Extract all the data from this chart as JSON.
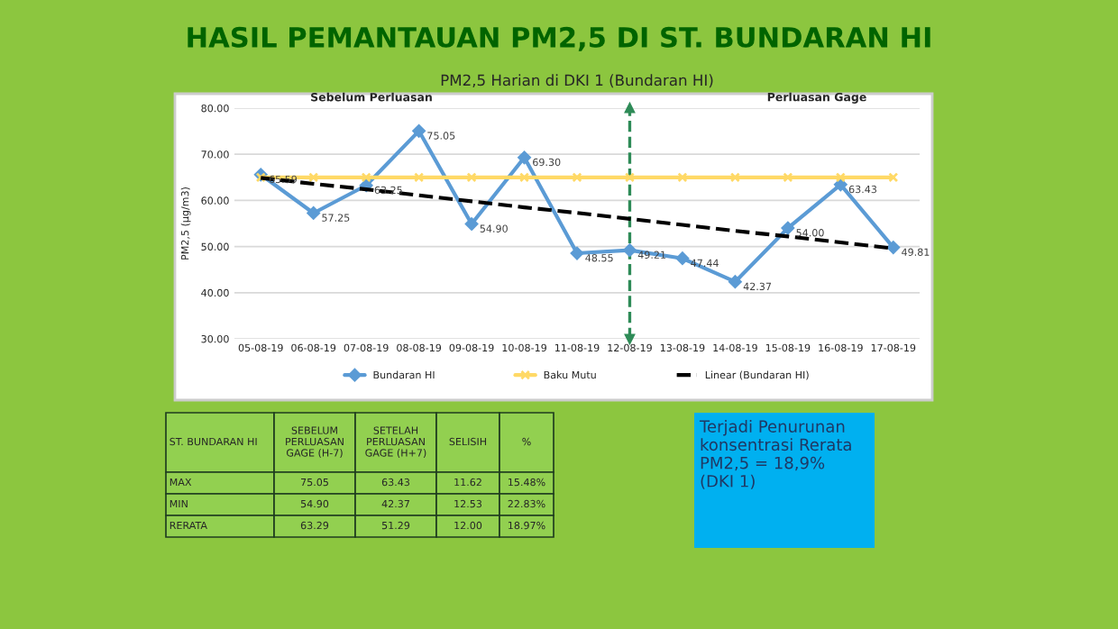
{
  "chart_data": [
    {
      "type": "line",
      "title": "HASIL PEMANTAUAN PM2,5 DI ST. BUNDARAN HI",
      "subtitle": "PM2,5 Harian di DKI 1 (Bundaran HI)",
      "ylabel": "PM2,5 (µg/m3)",
      "categories": [
        "05-08-19",
        "06-08-19",
        "07-08-19",
        "08-08-19",
        "09-08-19",
        "10-08-19",
        "11-08-19",
        "12-08-19",
        "13-08-19",
        "14-08-19",
        "15-08-19",
        "16-08-19",
        "17-08-19"
      ],
      "series": [
        {
          "name": "Bundaran HI",
          "color": "#5b9bd5",
          "marker": "diamond",
          "values": [
            65.59,
            57.25,
            63.25,
            75.05,
            54.9,
            69.3,
            48.55,
            49.21,
            47.44,
            42.37,
            54.0,
            63.43,
            49.81
          ],
          "value_labels": [
            "65.59",
            "57.25",
            "63.25",
            "75.05",
            "54.90",
            "69.30",
            "48.55",
            "49.21",
            "47.44",
            "42.37",
            "54.00",
            "63.43",
            "49.81"
          ]
        },
        {
          "name": "Baku Mutu",
          "color": "#ffd966",
          "marker": "cross",
          "values": [
            65,
            65,
            65,
            65,
            65,
            65,
            65,
            65,
            65,
            65,
            65,
            65,
            65
          ]
        },
        {
          "name": "Linear (Bundaran HI)",
          "color": "#000000",
          "marker": "none",
          "line_style": "dashed",
          "values": [
            64.9,
            63.6,
            62.4,
            61.1,
            59.8,
            58.5,
            57.3,
            56.0,
            54.7,
            53.4,
            52.2,
            50.9,
            49.6
          ]
        }
      ],
      "ylim": [
        30,
        80
      ],
      "yticks": [
        {
          "value": 30,
          "label": "30.00"
        },
        {
          "value": 40,
          "label": "40.00"
        },
        {
          "value": 50,
          "label": "50.00"
        },
        {
          "value": 60,
          "label": "60.00"
        },
        {
          "value": 70,
          "label": "70.00"
        },
        {
          "value": 80,
          "label": "80.00"
        }
      ],
      "grid": "y",
      "legend": "bottom",
      "ref_lines": [
        {
          "axis": "x",
          "value": "12-08-19",
          "color": "#2e8b57",
          "line_style": "dashed"
        }
      ],
      "annotations": [
        "Sebelum Perluasan",
        "Perluasan Gage"
      ]
    },
    {
      "type": "other",
      "annotations": [
        "ST. BUNDARAN HI",
        "SEBELUM\nPERLUASAN\nGAGE (H-7)",
        "SETELAH\nPERLUASAN\nGAGE (H+7)",
        "SELISIH",
        "%",
        "MAX",
        "75.05",
        "63.43",
        "11.62",
        "15.48%",
        "MIN",
        "54.90",
        "42.37",
        "12.53",
        "22.83%",
        "RERATA",
        "63.29",
        "51.29",
        "12.00",
        "18.97%",
        "Terjadi Penurunan\nkonsentrasi Rerata\nPM2,5 = 18,9%\n(DKI 1)"
      ]
    }
  ]
}
